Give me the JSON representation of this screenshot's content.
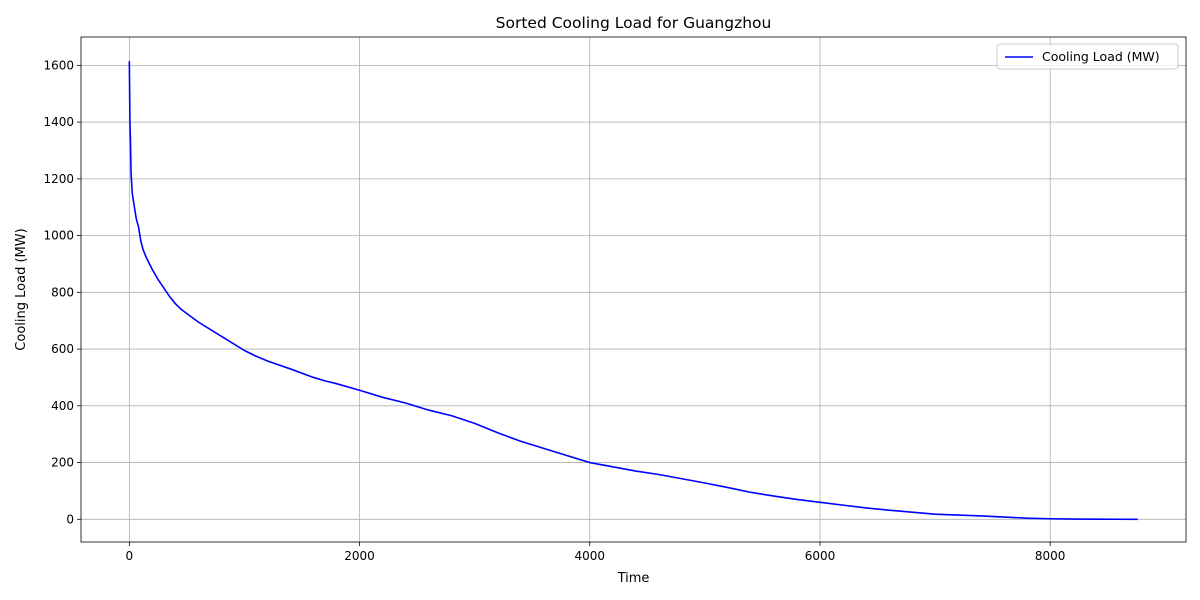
{
  "chart_data": {
    "type": "line",
    "title": "Sorted Cooling Load for Guangzhou",
    "xlabel": "Time",
    "ylabel": "Cooling Load (MW)",
    "xlim": [
      -420,
      9180
    ],
    "ylim": [
      -80,
      1700
    ],
    "xticks": [
      0,
      2000,
      4000,
      6000,
      8000
    ],
    "yticks": [
      0,
      200,
      400,
      600,
      800,
      1000,
      1200,
      1400,
      1600
    ],
    "grid": true,
    "legend_position": "top-right",
    "colors": {
      "line": "#0000ff",
      "grid": "#b0b0b0",
      "axes": "#000000"
    },
    "series": [
      {
        "name": "Cooling Load (MW)",
        "x": [
          0,
          5,
          10,
          15,
          25,
          40,
          60,
          80,
          100,
          120,
          150,
          200,
          250,
          300,
          350,
          400,
          450,
          500,
          600,
          700,
          800,
          900,
          1000,
          1100,
          1200,
          1400,
          1600,
          1700,
          1800,
          2000,
          2200,
          2400,
          2600,
          2800,
          3000,
          3200,
          3400,
          3600,
          3800,
          4000,
          4200,
          4400,
          4600,
          4800,
          5000,
          5200,
          5400,
          5600,
          5800,
          6000,
          6200,
          6400,
          6600,
          6800,
          7000,
          7200,
          7400,
          7600,
          7800,
          8000,
          8200,
          8400,
          8600,
          8760
        ],
        "y": [
          1615,
          1400,
          1330,
          1220,
          1150,
          1110,
          1060,
          1030,
          980,
          950,
          920,
          880,
          845,
          815,
          785,
          760,
          740,
          725,
          695,
          670,
          645,
          620,
          595,
          575,
          558,
          530,
          500,
          488,
          478,
          455,
          430,
          410,
          385,
          365,
          338,
          305,
          275,
          250,
          225,
          200,
          185,
          170,
          158,
          143,
          128,
          112,
          95,
          82,
          70,
          60,
          50,
          40,
          32,
          25,
          18,
          15,
          12,
          8,
          4,
          2,
          1,
          0.5,
          0.2,
          0
        ]
      }
    ]
  }
}
